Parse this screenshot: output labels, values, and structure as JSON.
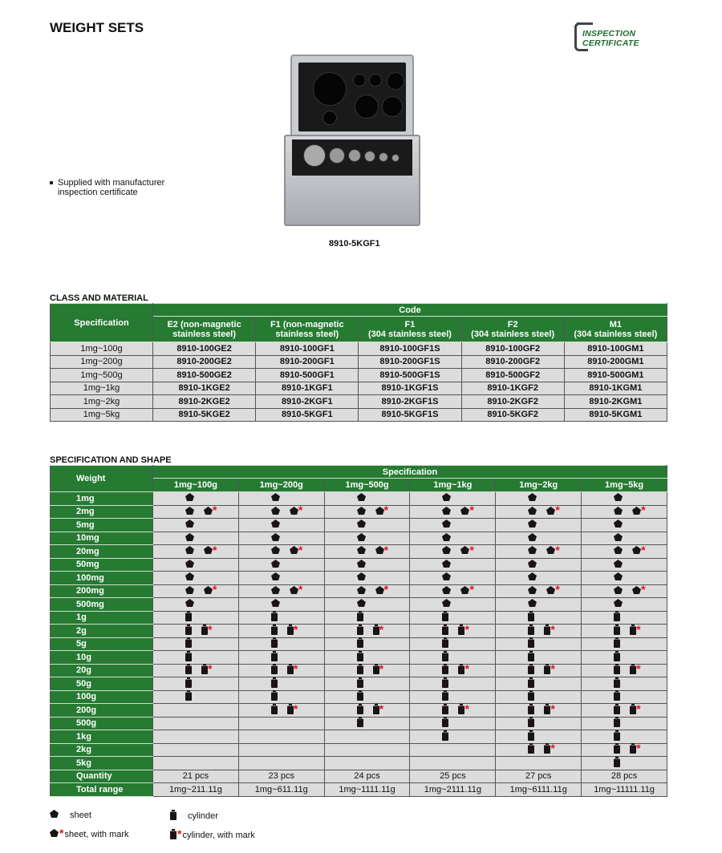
{
  "header": {
    "title": "WEIGHT SETS",
    "logo_text": [
      "INSPECTION",
      "CERTIFICATE"
    ]
  },
  "feature": {
    "line1": "Supplied with manufacturer",
    "line2": "inspection certificate"
  },
  "product": {
    "caption": "8910-5KGF1"
  },
  "class_material": {
    "section_title": "CLASS AND MATERIAL",
    "spec_header": "Specification",
    "code_header": "Code",
    "columns": [
      [
        "E2 (non-magnetic",
        "stainless steel)"
      ],
      [
        "F1 (non-magnetic",
        "stainless steel)"
      ],
      [
        "F1",
        "(304 stainless steel)"
      ],
      [
        "F2",
        "(304 stainless steel)"
      ],
      [
        "M1",
        "(304 stainless steel)"
      ]
    ],
    "rows": [
      {
        "spec": "1mg~100g",
        "codes": [
          "8910-100GE2",
          "8910-100GF1",
          "8910-100GF1S",
          "8910-100GF2",
          "8910-100GM1"
        ]
      },
      {
        "spec": "1mg~200g",
        "codes": [
          "8910-200GE2",
          "8910-200GF1",
          "8910-200GF1S",
          "8910-200GF2",
          "8910-200GM1"
        ]
      },
      {
        "spec": "1mg~500g",
        "codes": [
          "8910-500GE2",
          "8910-500GF1",
          "8910-500GF1S",
          "8910-500GF2",
          "8910-500GM1"
        ]
      },
      {
        "spec": "1mg~1kg",
        "codes": [
          "8910-1KGE2",
          "8910-1KGF1",
          "8910-1KGF1S",
          "8910-1KGF2",
          "8910-1KGM1"
        ]
      },
      {
        "spec": "1mg~2kg",
        "codes": [
          "8910-2KGE2",
          "8910-2KGF1",
          "8910-2KGF1S",
          "8910-2KGF2",
          "8910-2KGM1"
        ]
      },
      {
        "spec": "1mg~5kg",
        "codes": [
          "8910-5KGE2",
          "8910-5KGF1",
          "8910-5KGF1S",
          "8910-5KGF2",
          "8910-5KGM1"
        ]
      }
    ]
  },
  "spec_shape": {
    "section_title": "SPECIFICATION AND SHAPE",
    "weight_header": "Weight",
    "spec_header": "Specification",
    "columns": [
      "1mg~100g",
      "1mg~200g",
      "1mg~500g",
      "1mg~1kg",
      "1mg~2kg",
      "1mg~5kg"
    ],
    "shape_codes": {
      "s": "sheet",
      "S": "sheet + sheet with mark",
      "c": "cylinder",
      "C": "cylinder + cylinder with mark",
      "": "none"
    },
    "rows": [
      {
        "weight": "1mg",
        "cells": [
          "s",
          "s",
          "s",
          "s",
          "s",
          "s"
        ]
      },
      {
        "weight": "2mg",
        "cells": [
          "S",
          "S",
          "S",
          "S",
          "S",
          "S"
        ]
      },
      {
        "weight": "5mg",
        "cells": [
          "s",
          "s",
          "s",
          "s",
          "s",
          "s"
        ]
      },
      {
        "weight": "10mg",
        "cells": [
          "s",
          "s",
          "s",
          "s",
          "s",
          "s"
        ]
      },
      {
        "weight": "20mg",
        "cells": [
          "S",
          "S",
          "S",
          "S",
          "S",
          "S"
        ]
      },
      {
        "weight": "50mg",
        "cells": [
          "s",
          "s",
          "s",
          "s",
          "s",
          "s"
        ]
      },
      {
        "weight": "100mg",
        "cells": [
          "s",
          "s",
          "s",
          "s",
          "s",
          "s"
        ]
      },
      {
        "weight": "200mg",
        "cells": [
          "S",
          "S",
          "S",
          "S",
          "S",
          "S"
        ]
      },
      {
        "weight": "500mg",
        "cells": [
          "s",
          "s",
          "s",
          "s",
          "s",
          "s"
        ]
      },
      {
        "weight": "1g",
        "cells": [
          "c",
          "c",
          "c",
          "c",
          "c",
          "c"
        ]
      },
      {
        "weight": "2g",
        "cells": [
          "C",
          "C",
          "C",
          "C",
          "C",
          "C"
        ]
      },
      {
        "weight": "5g",
        "cells": [
          "c",
          "c",
          "c",
          "c",
          "c",
          "c"
        ]
      },
      {
        "weight": "10g",
        "cells": [
          "c",
          "c",
          "c",
          "c",
          "c",
          "c"
        ]
      },
      {
        "weight": "20g",
        "cells": [
          "C",
          "C",
          "C",
          "C",
          "C",
          "C"
        ]
      },
      {
        "weight": "50g",
        "cells": [
          "c",
          "c",
          "c",
          "c",
          "c",
          "c"
        ]
      },
      {
        "weight": "100g",
        "cells": [
          "c",
          "c",
          "c",
          "c",
          "c",
          "c"
        ]
      },
      {
        "weight": "200g",
        "cells": [
          "",
          "C",
          "C",
          "C",
          "C",
          "C"
        ]
      },
      {
        "weight": "500g",
        "cells": [
          "",
          "",
          "c",
          "c",
          "c",
          "c"
        ]
      },
      {
        "weight": "1kg",
        "cells": [
          "",
          "",
          "",
          "c",
          "c",
          "c"
        ]
      },
      {
        "weight": "2kg",
        "cells": [
          "",
          "",
          "",
          "",
          "C",
          "C"
        ]
      },
      {
        "weight": "5kg",
        "cells": [
          "",
          "",
          "",
          "",
          "",
          "c"
        ]
      }
    ],
    "quantity": {
      "label": "Quantity",
      "values": [
        "21 pcs",
        "23 pcs",
        "24 pcs",
        "25 pcs",
        "27 pcs",
        "28 pcs"
      ]
    },
    "total_range": {
      "label": "Total range",
      "values": [
        "1mg~211.11g",
        "1mg~611.11g",
        "1mg~1111.11g",
        "1mg~2111.11g",
        "1mg~6111.11g",
        "1mg~11111.11g"
      ]
    }
  },
  "legend": {
    "sheet": "sheet",
    "sheet_mark": "sheet, with mark",
    "cylinder": "cylinder",
    "cylinder_mark": "cylinder, with mark",
    "mark_symbol": "*"
  },
  "colors": {
    "header_green": "#267a32",
    "cell_gray": "#dcdcdc",
    "mark_red": "#e0141e",
    "logo_green": "#1e6b30"
  }
}
